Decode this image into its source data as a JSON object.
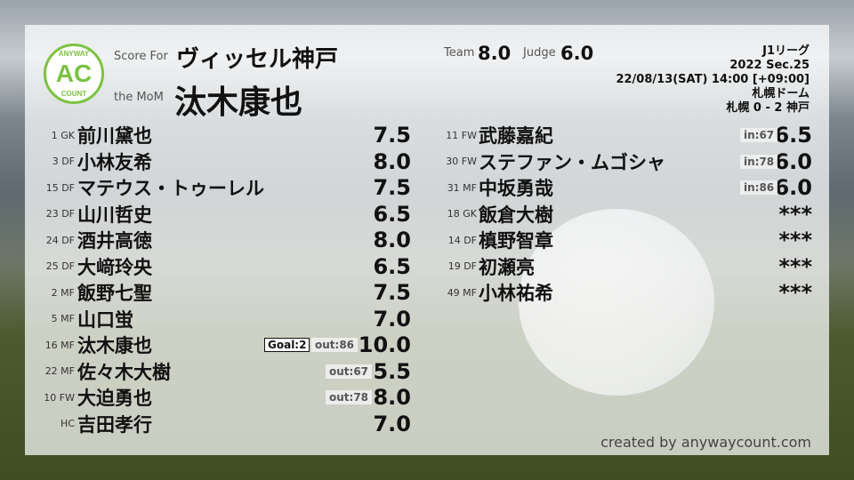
{
  "header": {
    "score_for_label": "Score For",
    "team_name": "ヴィッセル神戸",
    "mom_label": "the MoM",
    "mom_name": "汰木康也",
    "team_label": "Team",
    "team_score": "8.0",
    "judge_label": "Judge",
    "judge_score": "6.0"
  },
  "logo": {
    "top": "ANYWAY",
    "center": "AC",
    "bottom": "COUNT"
  },
  "match": {
    "league": "J1リーグ",
    "season": "2022 Sec.25",
    "datetime": "22/08/13(SAT) 14:00 [+09:00]",
    "venue": "札幌ドーム",
    "result": "札幌 0 - 2 神戸"
  },
  "left_players": [
    {
      "pos": "1 GK",
      "name": "前川黛也",
      "score": "7.5"
    },
    {
      "pos": "3 DF",
      "name": "小林友希",
      "score": "8.0"
    },
    {
      "pos": "15 DF",
      "name": "マテウス・トゥーレル",
      "score": "7.5"
    },
    {
      "pos": "23 DF",
      "name": "山川哲史",
      "score": "6.5"
    },
    {
      "pos": "24 DF",
      "name": "酒井高徳",
      "score": "8.0"
    },
    {
      "pos": "25 DF",
      "name": "大﨑玲央",
      "score": "6.5"
    },
    {
      "pos": "2 MF",
      "name": "飯野七聖",
      "score": "7.5"
    },
    {
      "pos": "5 MF",
      "name": "山口蛍",
      "score": "7.0"
    },
    {
      "pos": "16 MF",
      "name": "汰木康也",
      "score": "10.0",
      "goal": "Goal:2",
      "sub": "out:86"
    },
    {
      "pos": "22 MF",
      "name": "佐々木大樹",
      "score": "5.5",
      "sub": "out:67"
    },
    {
      "pos": "10 FW",
      "name": "大迫勇也",
      "score": "8.0",
      "sub": "out:78"
    },
    {
      "pos": "HC",
      "name": "吉田孝行",
      "score": "7.0"
    }
  ],
  "right_players": [
    {
      "pos": "11 FW",
      "name": "武藤嘉紀",
      "score": "6.5",
      "sub": "in:67"
    },
    {
      "pos": "30 FW",
      "name": "ステファン・ムゴシャ",
      "score": "6.0",
      "sub": "in:78"
    },
    {
      "pos": "31 MF",
      "name": "中坂勇哉",
      "score": "6.0",
      "sub": "in:86"
    },
    {
      "pos": "18 GK",
      "name": "飯倉大樹",
      "score": "***"
    },
    {
      "pos": "14 DF",
      "name": "槙野智章",
      "score": "***"
    },
    {
      "pos": "19 DF",
      "name": "初瀬亮",
      "score": "***"
    },
    {
      "pos": "49 MF",
      "name": "小林祐希",
      "score": "***"
    }
  ],
  "footer": {
    "credit": "created by anywaycount.com"
  }
}
